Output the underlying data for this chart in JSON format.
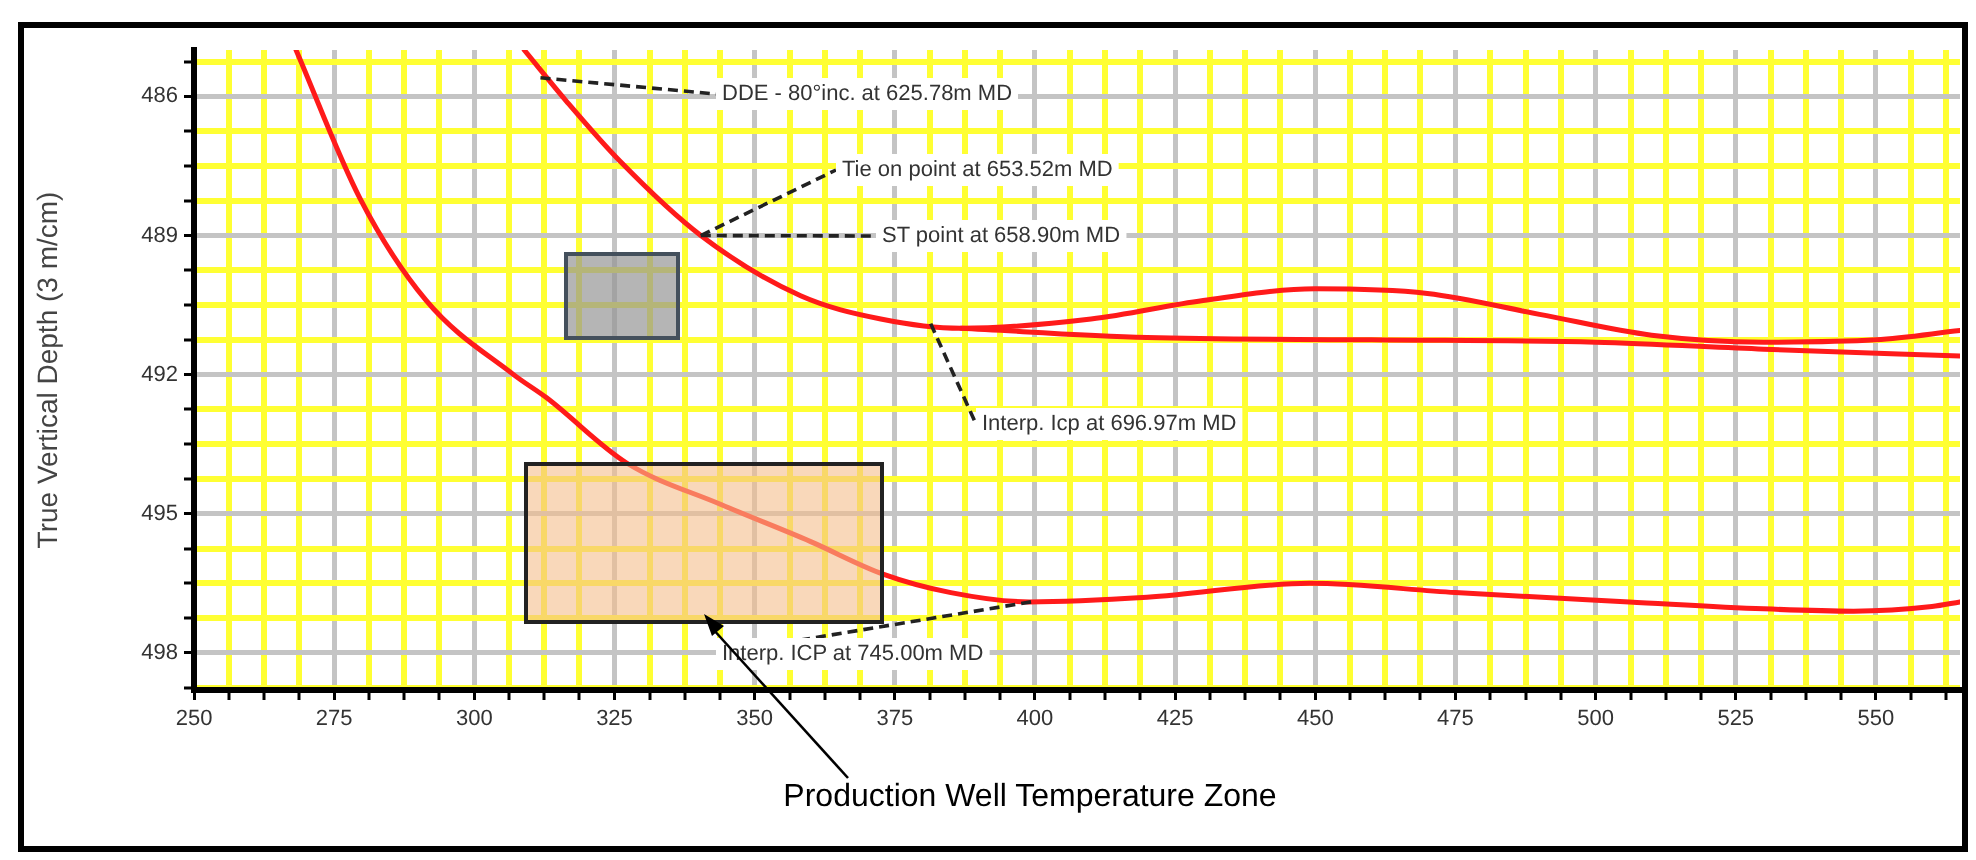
{
  "chart_data": {
    "type": "line",
    "ylabel": "True Vertical Depth (3 m/cm)",
    "xlim": [
      250,
      565
    ],
    "ylim": [
      498.8,
      485
    ],
    "xticks": [
      250,
      {
        "value": 256.25,
        "label": null
      },
      {
        "value": 262.5,
        "label": null
      },
      {
        "value": 268.75,
        "label": null
      },
      275,
      {
        "value": 281.25,
        "label": null
      },
      {
        "value": 287.5,
        "label": null
      },
      {
        "value": 293.75,
        "label": null
      },
      300,
      {
        "value": 306.25,
        "label": null
      },
      {
        "value": 312.5,
        "label": null
      },
      {
        "value": 318.75,
        "label": null
      },
      325,
      {
        "value": 331.25,
        "label": null
      },
      {
        "value": 337.5,
        "label": null
      },
      {
        "value": 343.75,
        "label": null
      },
      350,
      {
        "value": 356.25,
        "label": null
      },
      {
        "value": 362.5,
        "label": null
      },
      {
        "value": 368.75,
        "label": null
      },
      375,
      {
        "value": 381.25,
        "label": null
      },
      {
        "value": 387.5,
        "label": null
      },
      {
        "value": 393.75,
        "label": null
      },
      400,
      {
        "value": 406.25,
        "label": null
      },
      {
        "value": 412.5,
        "label": null
      },
      {
        "value": 418.75,
        "label": null
      },
      425,
      {
        "value": 431.25,
        "label": null
      },
      {
        "value": 437.5,
        "label": null
      },
      {
        "value": 443.75,
        "label": null
      },
      450,
      {
        "value": 456.25,
        "label": null
      },
      {
        "value": 462.5,
        "label": null
      },
      {
        "value": 468.75,
        "label": null
      },
      475,
      {
        "value": 481.25,
        "label": null
      },
      {
        "value": 487.5,
        "label": null
      },
      {
        "value": 493.75,
        "label": null
      },
      500,
      {
        "value": 506.25,
        "label": null
      },
      {
        "value": 512.5,
        "label": null
      },
      {
        "value": 518.75,
        "label": null
      },
      525,
      {
        "value": 531.25,
        "label": null
      },
      {
        "value": 537.5,
        "label": null
      },
      {
        "value": 543.75,
        "label": null
      },
      550,
      {
        "value": 556.25,
        "label": null
      },
      {
        "value": 562.5,
        "label": null
      }
    ],
    "yticks": [
      {
        "value": 485.25,
        "label": null
      },
      486,
      {
        "value": 486.75,
        "label": null
      },
      {
        "value": 487.5,
        "label": null
      },
      {
        "value": 488.25,
        "label": null
      },
      489,
      {
        "value": 489.75,
        "label": null
      },
      {
        "value": 490.5,
        "label": null
      },
      {
        "value": 491.25,
        "label": null
      },
      492,
      {
        "value": 492.75,
        "label": null
      },
      {
        "value": 493.5,
        "label": null
      },
      {
        "value": 494.25,
        "label": null
      },
      495,
      {
        "value": 495.75,
        "label": null
      },
      {
        "value": 496.5,
        "label": null
      },
      {
        "value": 497.25,
        "label": null
      },
      498,
      {
        "value": 498.75,
        "label": null
      }
    ],
    "grid": true,
    "marker": "none",
    "line_style": "solid",
    "series": [
      {
        "color": "#ff1a1a",
        "x": [
          268.2,
          279.6,
          291.4,
          307,
          312.9,
          327.1,
          344,
          360,
          372.9,
          385,
          399,
          420,
          449,
          475,
          506,
          530,
          546,
          560,
          565
        ],
        "values": [
          485,
          488.2,
          490.4,
          492,
          492.5,
          493.9,
          494.8,
          495.6,
          496.3,
          496.7,
          496.9,
          496.8,
          496.5,
          496.7,
          496.9,
          497.05,
          497.1,
          497,
          496.9
        ]
      },
      {
        "color": "#ff1a1a",
        "x": [
          308.9,
          316.4,
          326,
          340.4,
          358.2,
          372.5,
          386.8,
          410,
          430,
          450,
          470,
          490,
          510,
          530,
          550,
          565
        ],
        "values": [
          485,
          486.1,
          487.4,
          489,
          490.3,
          490.8,
          491,
          490.8,
          490.4,
          490.15,
          490.25,
          490.7,
          491.15,
          491.3,
          491.25,
          491.05
        ]
      },
      {
        "color": "#ff1a1a",
        "x": [
          386.8,
          420,
          460,
          500,
          530,
          565
        ],
        "values": [
          491,
          491.2,
          491.25,
          491.3,
          491.45,
          491.6
        ]
      }
    ],
    "annotations": [
      {
        "text": "DDE - 80°inc. at 625.78m MD",
        "x": 311.8,
        "y": 485.6
      },
      {
        "text": "Tie on point at 653.52m MD",
        "x": 340.4,
        "y": 489
      },
      {
        "text": "ST point at 658.90m MD",
        "x": 340.4,
        "y": 489
      },
      {
        "text": "Interp. Icp at 696.97m MD",
        "x": 381.4,
        "y": 490.9
      },
      {
        "text": "Interp. ICP at 745.00m MD",
        "x": 399.3,
        "y": 496.9
      },
      "Production Well Temperature Zone"
    ]
  }
}
